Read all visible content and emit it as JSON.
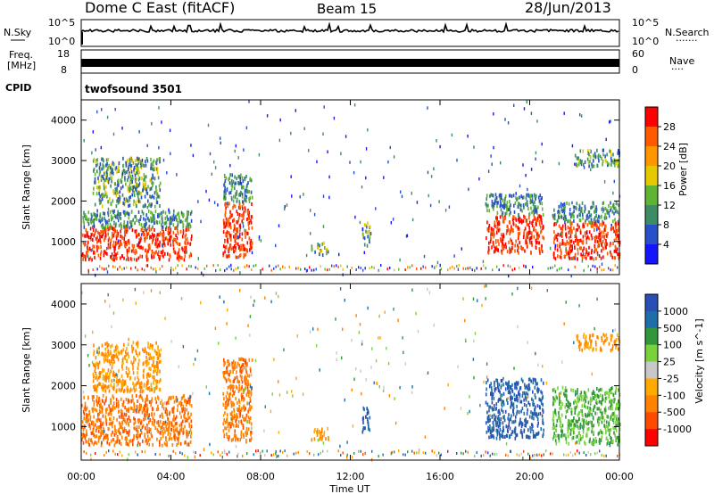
{
  "header": {
    "station": "Dome C East (fitACF)",
    "beam": "Beam 15",
    "date": "28/Jun/2013"
  },
  "panels": {
    "sky": {
      "left_label": "N.Sky",
      "left_top": "10^5",
      "left_bottom": "10^0",
      "right_top": "10^5",
      "right_bottom": "10^0",
      "right_label": "N.Search",
      "right_dots": "·······"
    },
    "freq": {
      "left_label_line1": "Freq.",
      "left_label_line2": "[MHz]",
      "left_top": "18",
      "left_bottom": "8",
      "right_top": "60",
      "right_bottom": "0",
      "right_label": "Nave",
      "right_dots": "····"
    },
    "cpid": {
      "label": "CPID",
      "program": "twofsound 3501"
    }
  },
  "colors": {
    "power_scale": [
      "#1515ff",
      "#2850c8",
      "#3c8c64",
      "#5fb432",
      "#e6c800",
      "#ff9600",
      "#ff5a00",
      "#ff0000"
    ],
    "velocity_scale": [
      "#ff0000",
      "#ff4b00",
      "#ff8200",
      "#ffaa00",
      "#c8c8c8",
      "#78d23c",
      "#32963c",
      "#1e6eaa",
      "#2850b4"
    ]
  },
  "chart_data": {
    "type": "heatmap",
    "x_label": "Time UT",
    "x_ticks": [
      "00:00",
      "04:00",
      "08:00",
      "12:00",
      "16:00",
      "20:00",
      "00:00"
    ],
    "x_range_hours": [
      0,
      24
    ],
    "y_label": "Slant Range [km]",
    "y_ticks": [
      "1000",
      "2000",
      "3000",
      "4000"
    ],
    "y_range_km": [
      180,
      4500
    ],
    "power_panel": {
      "colorbar_label": "Power [dB]",
      "colorbar_ticks": [
        "4",
        "8",
        "12",
        "16",
        "20",
        "24",
        "28"
      ]
    },
    "velocity_panel": {
      "colorbar_label": "Velocity [m s^-1]",
      "colorbar_ticks": [
        "1000",
        "500",
        "100",
        "25",
        "-25",
        "-100",
        "-500",
        "-1000"
      ]
    },
    "echo_regions": [
      {
        "t": [
          0.0,
          4.9
        ],
        "r": [
          580,
          1800
        ],
        "power": "high",
        "velocity": "-100 to -500"
      },
      {
        "t": [
          0.5,
          3.5
        ],
        "r": [
          1900,
          3100
        ],
        "power": "moderate",
        "velocity": "-100"
      },
      {
        "t": [
          6.3,
          7.6
        ],
        "r": [
          650,
          2700
        ],
        "power": "high",
        "velocity": "-100 to -500"
      },
      {
        "t": [
          10.2,
          11.0
        ],
        "r": [
          700,
          1000
        ],
        "power": "moderate",
        "velocity": "-100"
      },
      {
        "t": [
          12.5,
          12.9
        ],
        "r": [
          900,
          1500
        ],
        "power": "moderate",
        "velocity": "500 to 1000"
      },
      {
        "t": [
          18.0,
          20.6
        ],
        "r": [
          750,
          2200
        ],
        "power": "high",
        "velocity": "500 to 1000"
      },
      {
        "t": [
          21.0,
          24.0
        ],
        "r": [
          600,
          2000
        ],
        "power": "high",
        "velocity": "25 to 100"
      },
      {
        "t": [
          22.0,
          24.0
        ],
        "r": [
          2900,
          3300
        ],
        "power": "moderate",
        "velocity": "-100"
      }
    ]
  }
}
